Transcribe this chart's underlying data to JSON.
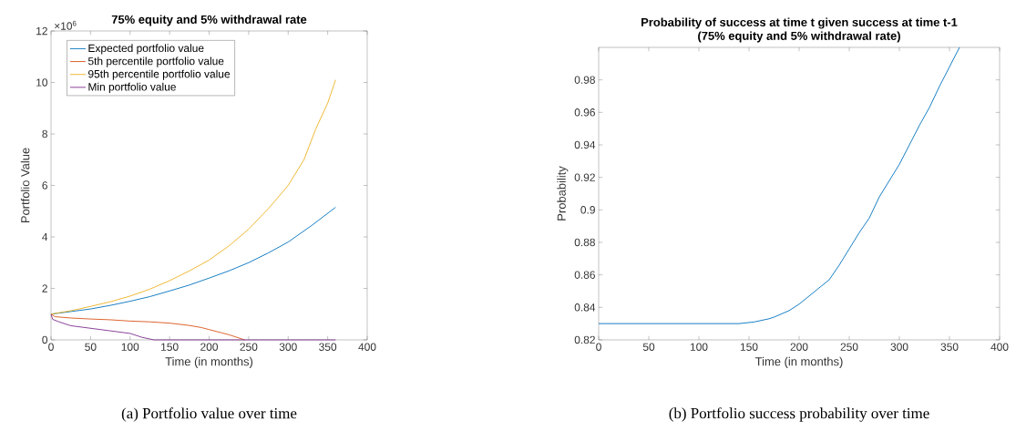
{
  "chart_data": [
    {
      "type": "line",
      "title": "75% equity and 5% withdrawal rate",
      "xlabel": "Time (in months)",
      "ylabel": "Portfolio Value",
      "annotations": [
        "×10$^{6}$",
        "(a) Portfolio value over time"
      ],
      "xlim": [
        0,
        400
      ],
      "xticks": [
        0,
        50,
        100,
        150,
        200,
        250,
        300,
        350,
        400
      ],
      "ylim": [
        0,
        12
      ],
      "yticks": [
        0,
        2,
        4,
        6,
        8,
        10,
        12
      ],
      "legend": "top left",
      "grid": false,
      "series": [
        {
          "name": "Expected portfolio value",
          "color": "#0072bd",
          "x": [
            0,
            25,
            50,
            75,
            100,
            125,
            150,
            175,
            200,
            225,
            250,
            275,
            300,
            330,
            360
          ],
          "values": [
            1.0,
            1.1,
            1.2,
            1.34,
            1.5,
            1.68,
            1.9,
            2.13,
            2.4,
            2.68,
            3.0,
            3.38,
            3.8,
            4.45,
            5.15
          ]
        },
        {
          "name": "5th percentile portfolio value",
          "color": "#d95319",
          "x": [
            0,
            5,
            25,
            50,
            75,
            100,
            125,
            150,
            175,
            190,
            200,
            215,
            225,
            245
          ],
          "values": [
            1.0,
            0.9,
            0.85,
            0.81,
            0.78,
            0.73,
            0.7,
            0.65,
            0.56,
            0.48,
            0.4,
            0.28,
            0.2,
            0
          ]
        },
        {
          "name": "95th percentile portfolio value",
          "color": "#edb120",
          "x": [
            0,
            25,
            50,
            75,
            100,
            125,
            150,
            175,
            200,
            225,
            250,
            275,
            300,
            320,
            335,
            350,
            360
          ],
          "values": [
            1.0,
            1.13,
            1.3,
            1.48,
            1.7,
            1.97,
            2.3,
            2.68,
            3.1,
            3.65,
            4.3,
            5.1,
            6.0,
            7.0,
            8.2,
            9.2,
            10.1
          ]
        },
        {
          "name": "Min portfolio value",
          "color": "#7e2f8e",
          "x": [
            0,
            2,
            10,
            25,
            50,
            75,
            100,
            115,
            130,
            200,
            300,
            360
          ],
          "values": [
            1.0,
            0.8,
            0.7,
            0.55,
            0.45,
            0.35,
            0.25,
            0.1,
            0,
            0,
            0,
            0
          ]
        }
      ]
    },
    {
      "type": "line",
      "title": "Probability of success at time t given success at time t-1",
      "subtitle": "(75% equity and 5% withdrawal rate)",
      "xlabel": "Time (in months)",
      "ylabel": "Probability",
      "annotations": [
        "(b) Portfolio success probability over time"
      ],
      "xlim": [
        0,
        400
      ],
      "xticks": [
        0,
        50,
        100,
        150,
        200,
        250,
        300,
        350,
        400
      ],
      "ylim": [
        0.82,
        1.0
      ],
      "yticks": [
        0.82,
        0.84,
        0.86,
        0.88,
        0.9,
        0.92,
        0.94,
        0.96,
        0.98
      ],
      "legend": false,
      "grid": false,
      "series": [
        {
          "color": "#0072bd",
          "x": [
            0,
            50,
            100,
            140,
            155,
            170,
            175,
            190,
            200,
            210,
            220,
            230,
            240,
            250,
            260,
            270,
            280,
            290,
            300,
            310,
            320,
            330,
            340,
            350,
            360
          ],
          "values": [
            0.83,
            0.83,
            0.83,
            0.83,
            0.831,
            0.833,
            0.834,
            0.838,
            0.842,
            0.847,
            0.852,
            0.857,
            0.866,
            0.876,
            0.886,
            0.895,
            0.908,
            0.918,
            0.928,
            0.94,
            0.952,
            0.963,
            0.976,
            0.988,
            1.0
          ]
        }
      ]
    }
  ]
}
